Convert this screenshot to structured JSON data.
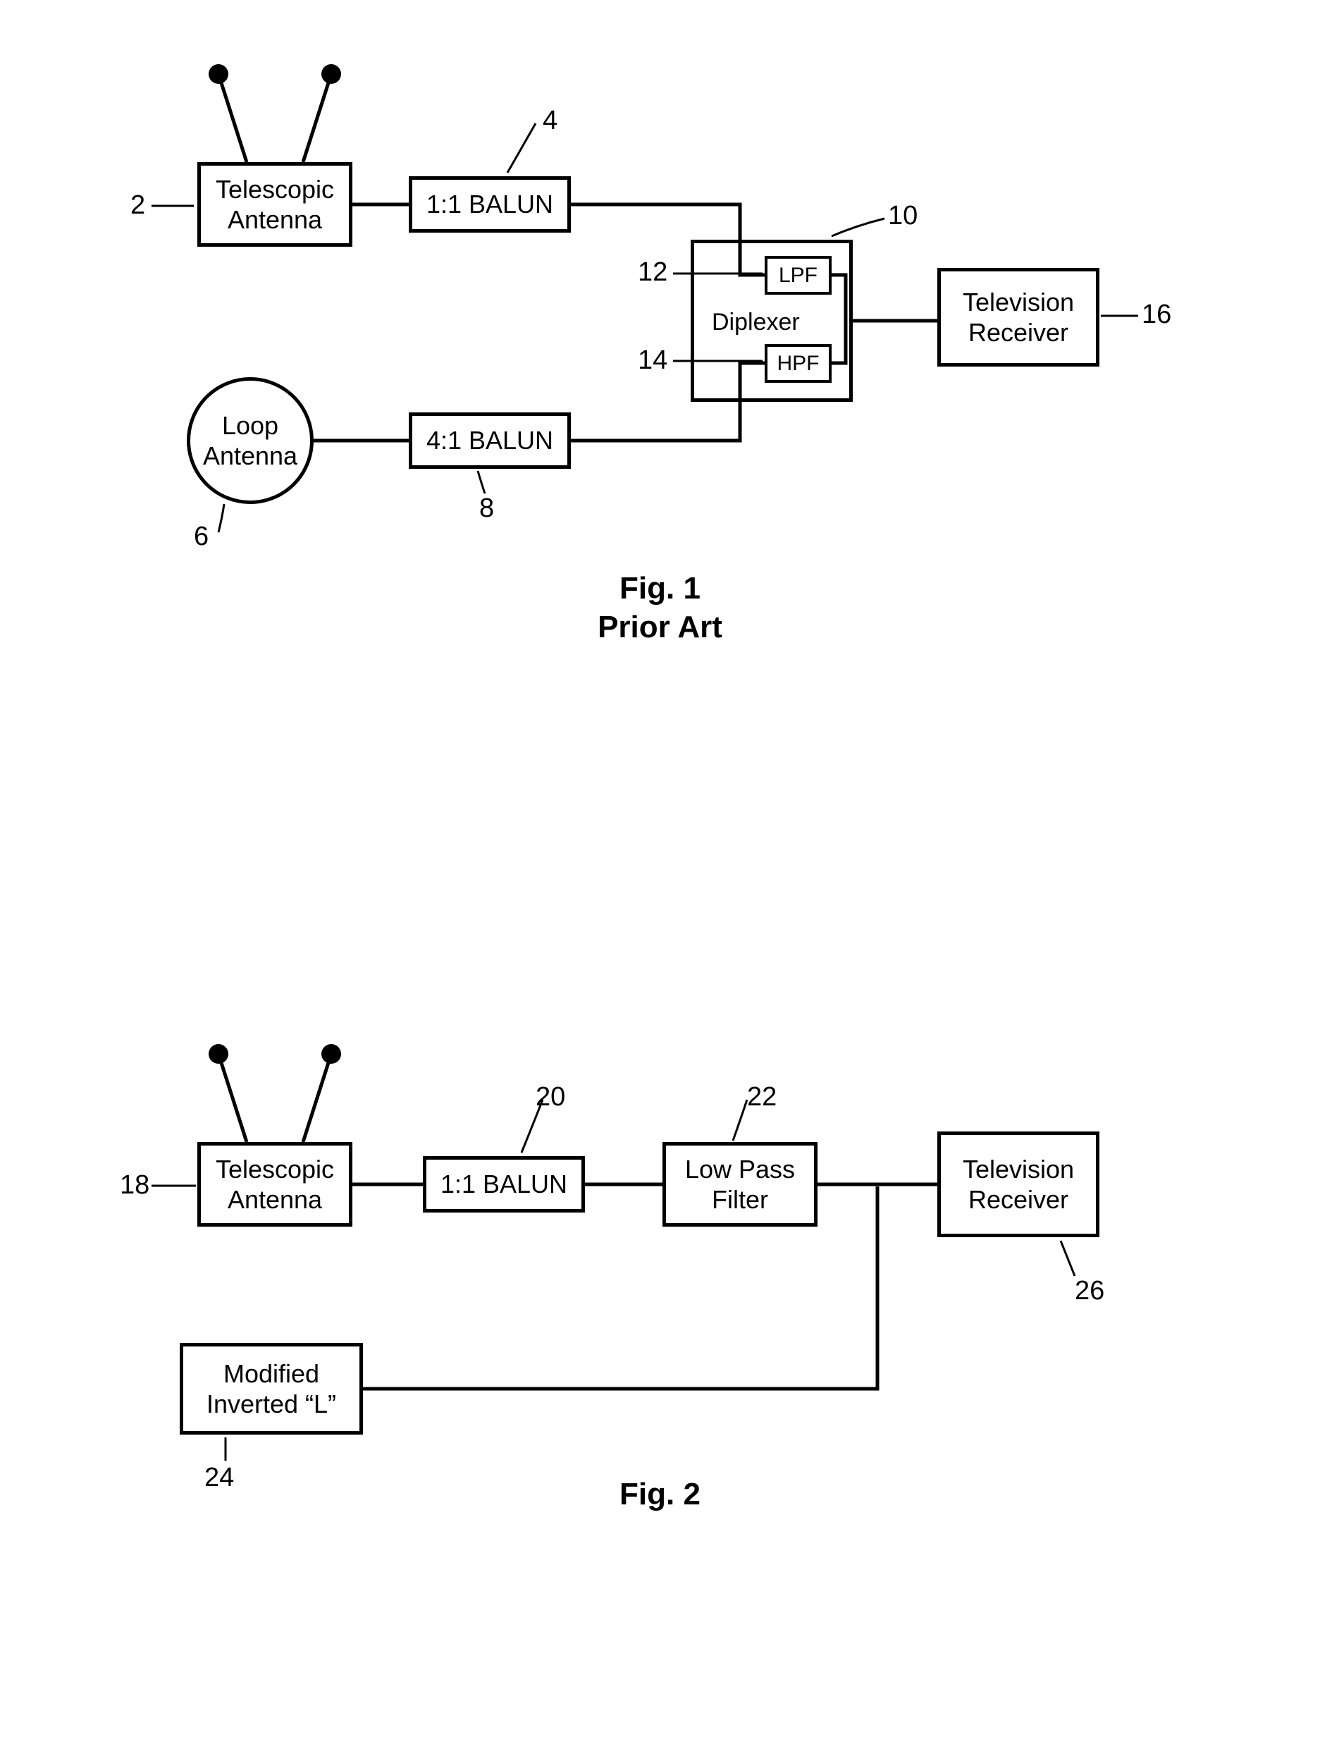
{
  "fig1": {
    "telescopic": "Telescopic\nAntenna",
    "balun11": "1:1 BALUN",
    "loop": "Loop\nAntenna",
    "balun41": "4:1 BALUN",
    "diplexer": "Diplexer",
    "lpf": "LPF",
    "hpf": "HPF",
    "tv": "Television\nReceiver",
    "ref": {
      "r2": "2",
      "r4": "4",
      "r6": "6",
      "r8": "8",
      "r10": "10",
      "r12": "12",
      "r14": "14",
      "r16": "16"
    },
    "caption1": "Fig. 1",
    "caption2": "Prior Art"
  },
  "fig2": {
    "telescopic": "Telescopic\nAntenna",
    "balun11": "1:1 BALUN",
    "lpf": "Low Pass\nFilter",
    "tv": "Television\nReceiver",
    "modL": "Modified\nInverted “L”",
    "ref": {
      "r18": "18",
      "r20": "20",
      "r22": "22",
      "r24": "24",
      "r26": "26"
    },
    "caption": "Fig. 2"
  },
  "style": {
    "box_border": "#000000",
    "line_color": "#000000",
    "bg": "#ffffff",
    "font": "Arial",
    "box_font_size": 36,
    "caption_font_size": 44,
    "line_width": 5
  }
}
